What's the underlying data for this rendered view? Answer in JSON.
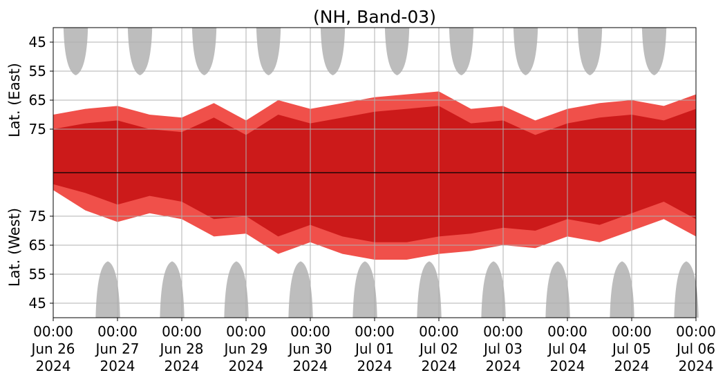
{
  "chart_data": {
    "type": "heatmap",
    "title": "(NH, Band-03)",
    "ylabel_top": "Lat. (East)",
    "ylabel_bottom": "Lat. (West)",
    "x_ticks": [
      {
        "line1": "00:00",
        "line2": "Jun 26",
        "line3": "2024"
      },
      {
        "line1": "00:00",
        "line2": "Jun 27",
        "line3": "2024"
      },
      {
        "line1": "00:00",
        "line2": "Jun 28",
        "line3": "2024"
      },
      {
        "line1": "00:00",
        "line2": "Jun 29",
        "line3": "2024"
      },
      {
        "line1": "00:00",
        "line2": "Jun 30",
        "line3": "2024"
      },
      {
        "line1": "00:00",
        "line2": "Jul 01",
        "line3": "2024"
      },
      {
        "line1": "00:00",
        "line2": "Jul 02",
        "line3": "2024"
      },
      {
        "line1": "00:00",
        "line2": "Jul 03",
        "line3": "2024"
      },
      {
        "line1": "00:00",
        "line2": "Jul 04",
        "line3": "2024"
      },
      {
        "line1": "00:00",
        "line2": "Jul 05",
        "line3": "2024"
      },
      {
        "line1": "00:00",
        "line2": "Jul 06",
        "line3": "2024"
      }
    ],
    "y_ticks_top": [
      "45",
      "55",
      "65",
      "75"
    ],
    "y_ticks_bottom": [
      "75",
      "65",
      "55",
      "45"
    ],
    "xlim": [
      "2024-06-26 00:00",
      "2024-07-06 00:00"
    ],
    "ylim_top": [
      40,
      90
    ],
    "ylim_bottom": [
      90,
      40
    ],
    "grid": true,
    "colors": {
      "strong": "#cc1a1a",
      "weak": "#f0504a",
      "night": "#bdbdbd",
      "grid": "#b0b0b0",
      "divider": "#000000"
    },
    "activity_band": {
      "east_edge_lat": [
        70,
        68,
        67,
        70,
        71,
        66,
        72,
        65,
        68,
        66,
        64,
        63,
        62,
        68,
        67,
        72,
        68,
        66,
        65,
        67,
        63
      ],
      "west_edge_lat": [
        84,
        77,
        73,
        76,
        74,
        68,
        69,
        62,
        66,
        62,
        60,
        60,
        62,
        63,
        65,
        64,
        68,
        66,
        70,
        74,
        68
      ]
    }
  }
}
